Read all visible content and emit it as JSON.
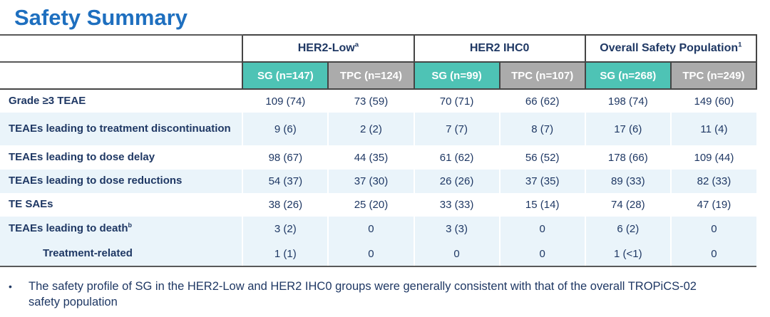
{
  "title": "Safety Summary",
  "table": {
    "groups": [
      {
        "label": "HER2-Low",
        "sup": "a"
      },
      {
        "label": "HER2 IHC0",
        "sup": ""
      },
      {
        "label": "Overall Safety Population",
        "sup": "1"
      }
    ],
    "columns": [
      {
        "label": "SG (n=147)",
        "variant": "teal"
      },
      {
        "label": "TPC (n=124)",
        "variant": "gray"
      },
      {
        "label": "SG (n=99)",
        "variant": "teal"
      },
      {
        "label": "TPC (n=107)",
        "variant": "gray"
      },
      {
        "label": "SG (n=268)",
        "variant": "teal"
      },
      {
        "label": "TPC (n=249)",
        "variant": "gray"
      }
    ],
    "rows": [
      {
        "label": "Grade ≥3 TEAE",
        "sup": "",
        "values": [
          "109 (74)",
          "73 (59)",
          "70 (71)",
          "66 (62)",
          "198 (74)",
          "149 (60)"
        ]
      },
      {
        "label": "TEAEs leading to treatment discontinuation",
        "sup": "",
        "values": [
          "9 (6)",
          "2 (2)",
          "7 (7)",
          "8 (7)",
          "17 (6)",
          "11 (4)"
        ]
      },
      {
        "label": "TEAEs leading to dose delay",
        "sup": "",
        "values": [
          "98 (67)",
          "44 (35)",
          "61 (62)",
          "56 (52)",
          "178 (66)",
          "109 (44)"
        ]
      },
      {
        "label": "TEAEs leading to dose reductions",
        "sup": "",
        "values": [
          "54 (37)",
          "37 (30)",
          "26 (26)",
          "37 (35)",
          "89 (33)",
          "82 (33)"
        ]
      },
      {
        "label": "TE SAEs",
        "sup": "",
        "values": [
          "38 (26)",
          "25 (20)",
          "33 (33)",
          "15 (14)",
          "74 (28)",
          "47 (19)"
        ]
      },
      {
        "label": "TEAEs leading to death",
        "sup": "b",
        "values": [
          "3 (2)",
          "0",
          "3 (3)",
          "0",
          "6 (2)",
          "0"
        ]
      },
      {
        "label": "Treatment-related",
        "sup": "",
        "values": [
          "1 (1)",
          "0",
          "0",
          "0",
          "1 (<1)",
          "0"
        ]
      }
    ]
  },
  "footnote": {
    "bullet": "•",
    "text": "The safety profile of SG in the HER2-Low and HER2 IHC0 groups were generally consistent with that of the overall TROPiCS-02 safety population"
  },
  "colors": {
    "title_blue": "#1E6FBF",
    "text_navy": "#1F3864",
    "sg_teal": "#4EC3B5",
    "tpc_gray": "#ABABAB",
    "row_shade": "#EAF4FA",
    "border_dark": "#454545"
  }
}
